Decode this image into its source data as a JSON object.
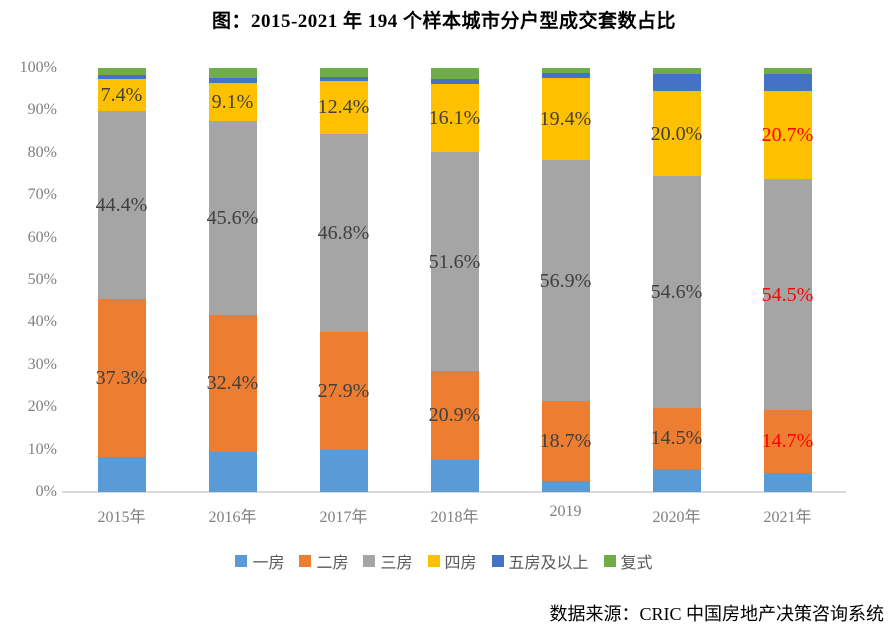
{
  "source_note": "数据来源：CRIC 中国房地产决策咨询系统",
  "chart_data": {
    "type": "bar",
    "stacked": true,
    "title": "图：2015-2021 年 194 个样本城市分户型成交套数占比",
    "xlabel": "",
    "ylabel": "",
    "ylim": [
      0,
      100
    ],
    "grid": false,
    "legend_position": "bottom",
    "yticks": [
      "0%",
      "10%",
      "20%",
      "30%",
      "40%",
      "50%",
      "60%",
      "70%",
      "80%",
      "90%",
      "100%"
    ],
    "categories": [
      "2015年",
      "2016年",
      "2017年",
      "2018年",
      "2019",
      "2020年",
      "2021年"
    ],
    "series": [
      {
        "name": "一房",
        "color": "#5b9bd5",
        "labeled": false,
        "values": [
          8.2,
          9.4,
          9.8,
          7.6,
          2.7,
          5.4,
          4.6
        ]
      },
      {
        "name": "二房",
        "color": "#ed7d31",
        "labeled": true,
        "values": [
          37.3,
          32.4,
          27.9,
          20.9,
          18.7,
          14.5,
          14.7
        ]
      },
      {
        "name": "三房",
        "color": "#a5a5a5",
        "labeled": true,
        "values": [
          44.4,
          45.6,
          46.8,
          51.6,
          56.9,
          54.6,
          54.5
        ]
      },
      {
        "name": "四房",
        "color": "#ffc000",
        "labeled": true,
        "values": [
          7.4,
          9.1,
          12.4,
          16.1,
          19.4,
          20.0,
          20.7
        ]
      },
      {
        "name": "五房及以上",
        "color": "#4472c4",
        "labeled": false,
        "values": [
          1.1,
          1.2,
          1.1,
          1.2,
          1.2,
          4.0,
          4.0
        ]
      },
      {
        "name": "复式",
        "color": "#70ad47",
        "labeled": false,
        "values": [
          1.6,
          2.3,
          2.0,
          2.6,
          1.1,
          1.5,
          1.5
        ]
      }
    ],
    "label_colors": [
      "#404040",
      "#404040",
      "#404040",
      "#404040",
      "#404040",
      "#404040",
      "#ff0000"
    ],
    "axis_line_color": "#d9d9d9"
  },
  "layout_text": {}
}
